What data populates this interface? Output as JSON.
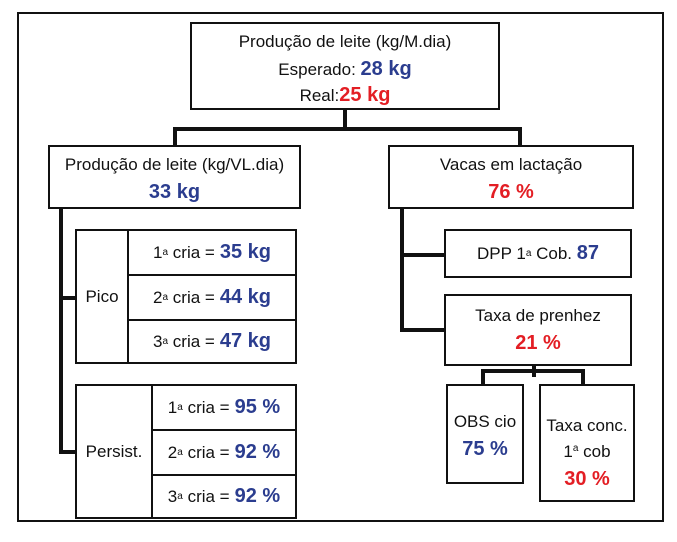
{
  "top": {
    "title": "Produção de leite (kg/M.dia)",
    "expected_label": "Esperado:",
    "expected_value": "28 kg",
    "real_label": "Real:",
    "real_value": "25 kg"
  },
  "left": {
    "title": "Produção de leite (kg/VL.dia)",
    "value": "33 kg"
  },
  "pico": {
    "label": "Pico",
    "rows": [
      {
        "ordinal": "1",
        "sup": "a",
        "text": "cria =",
        "value": "35 kg"
      },
      {
        "ordinal": "2",
        "sup": "a",
        "text": "cria =",
        "value": "44 kg"
      },
      {
        "ordinal": "3",
        "sup": "a",
        "text": "cria =",
        "value": "47 kg"
      }
    ]
  },
  "persist": {
    "label": "Persist.",
    "rows": [
      {
        "ordinal": "1",
        "sup": "a",
        "text": "cria =",
        "value": "95 %"
      },
      {
        "ordinal": "2",
        "sup": "a",
        "text": "cria =",
        "value": "92 %"
      },
      {
        "ordinal": "3",
        "sup": "a",
        "text": "cria =",
        "value": "92 %"
      }
    ]
  },
  "right": {
    "title": "Vacas em lactação",
    "value": "76 %"
  },
  "dpp": {
    "label_pre": "DPP 1",
    "sup": "a",
    "label_post": "Cob.",
    "value": "87"
  },
  "taxa": {
    "title": "Taxa de prenhez",
    "value": "21 %"
  },
  "obs": {
    "title": "OBS cio",
    "value": "75 %"
  },
  "conc": {
    "line1": "Taxa conc.",
    "line2_pre": "1",
    "sup": "a",
    "line2_post": "cob",
    "value": "30 %"
  },
  "colors": {
    "blue": "#2b3d8f",
    "red": "#e31e24",
    "line": "#111111"
  }
}
